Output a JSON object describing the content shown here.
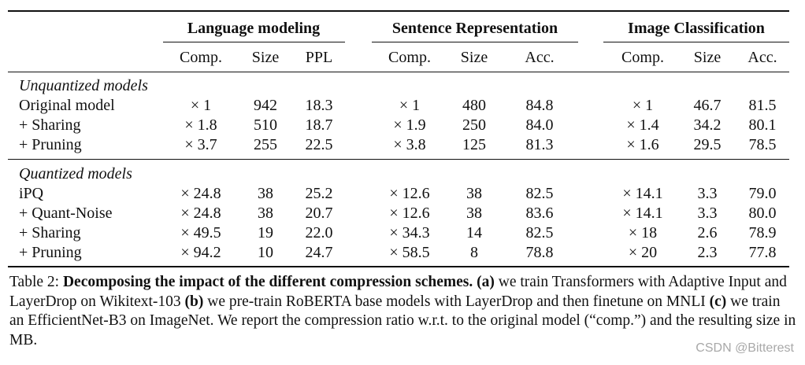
{
  "table": {
    "groups": {
      "lm": "Language modeling",
      "sr": "Sentence Representation",
      "ic": "Image Classification"
    },
    "subheaders": {
      "comp": "Comp.",
      "size": "Size",
      "ppl": "PPL",
      "acc": "Acc."
    },
    "sections": {
      "unquantized": "Unquantized models",
      "quantized": "Quantized models"
    },
    "rows": [
      {
        "name": "Original model",
        "lm_comp": "× 1",
        "lm_size": "942",
        "lm_ppl": "18.3",
        "sr_comp": "× 1",
        "sr_size": "480",
        "sr_acc": "84.8",
        "ic_comp": "× 1",
        "ic_size": "46.7",
        "ic_acc": "81.5"
      },
      {
        "name": "+ Sharing",
        "lm_comp": "× 1.8",
        "lm_size": "510",
        "lm_ppl": "18.7",
        "sr_comp": "× 1.9",
        "sr_size": "250",
        "sr_acc": "84.0",
        "ic_comp": "× 1.4",
        "ic_size": "34.2",
        "ic_acc": "80.1"
      },
      {
        "name": "+ Pruning",
        "lm_comp": "× 3.7",
        "lm_size": "255",
        "lm_ppl": "22.5",
        "sr_comp": "× 3.8",
        "sr_size": "125",
        "sr_acc": "81.3",
        "ic_comp": "× 1.6",
        "ic_size": "29.5",
        "ic_acc": "78.5"
      },
      {
        "name": "iPQ",
        "lm_comp": "× 24.8",
        "lm_size": "38",
        "lm_ppl": "25.2",
        "sr_comp": "× 12.6",
        "sr_size": "38",
        "sr_acc": "82.5",
        "ic_comp": "× 14.1",
        "ic_size": "3.3",
        "ic_acc": "79.0"
      },
      {
        "name": "+ Quant-Noise",
        "lm_comp": "× 24.8",
        "lm_size": "38",
        "lm_ppl": "20.7",
        "sr_comp": "× 12.6",
        "sr_size": "38",
        "sr_acc": "83.6",
        "ic_comp": "× 14.1",
        "ic_size": "3.3",
        "ic_acc": "80.0"
      },
      {
        "name": "+ Sharing",
        "lm_comp": "× 49.5",
        "lm_size": "19",
        "lm_ppl": "22.0",
        "sr_comp": "× 34.3",
        "sr_size": "14",
        "sr_acc": "82.5",
        "ic_comp": "× 18",
        "ic_size": "2.6",
        "ic_acc": "78.9"
      },
      {
        "name": "+ Pruning",
        "lm_comp": "× 94.2",
        "lm_size": "10",
        "lm_ppl": "24.7",
        "sr_comp": "× 58.5",
        "sr_size": "8",
        "sr_acc": "78.8",
        "ic_comp": "× 20",
        "ic_size": "2.3",
        "ic_acc": "77.8"
      }
    ]
  },
  "caption": {
    "label": "Table 2: ",
    "bold": "Decomposing the impact of the different compression schemes. (a)",
    "t1": " we train Transformers with Adaptive Input and LayerDrop on Wikitext-103 ",
    "b_b": "(b)",
    "t2": " we pre-train RoBERTA base models with LayerDrop and then finetune on MNLI ",
    "b_c": "(c)",
    "t3": " we train an EfficientNet-B3 on ImageNet. We report the compression ratio w.r.t. to the original model (“comp.”) and the resulting size in MB."
  },
  "watermark": "CSDN @Bitterest"
}
